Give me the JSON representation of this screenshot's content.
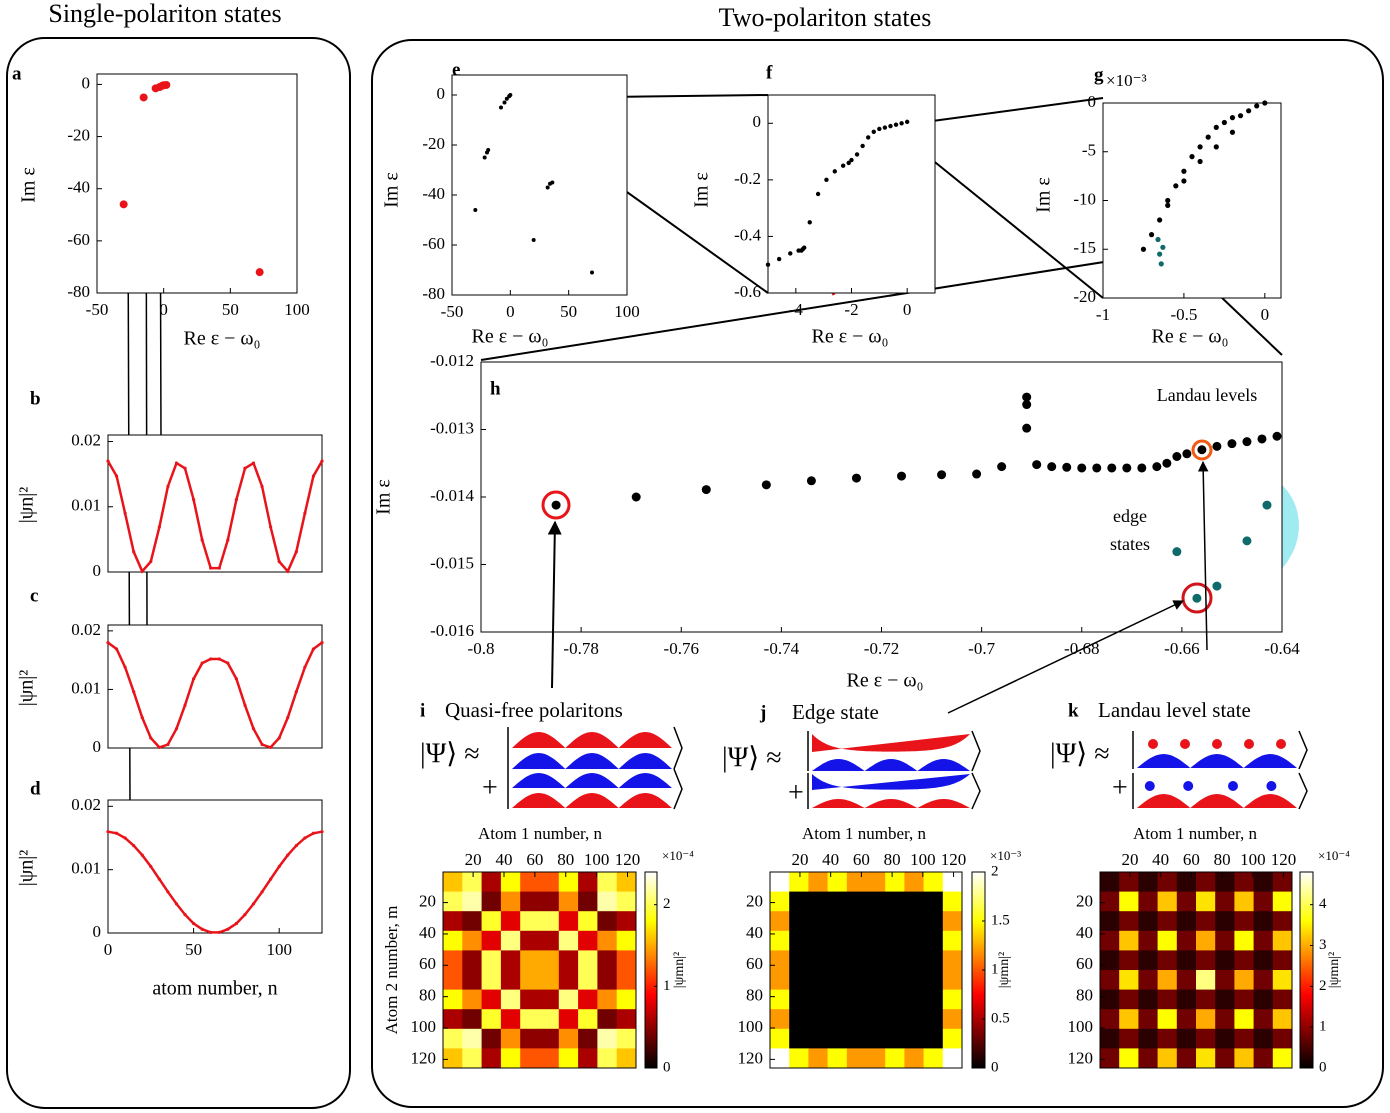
{
  "headings": {
    "left": "Single-polariton states",
    "right": "Two-polariton states"
  },
  "chart_data": [
    {
      "type": "scatter",
      "label": "a",
      "xlabel": "Re ε − ω₀",
      "ylabel": "Im ε",
      "xlim": [
        -50,
        100
      ],
      "ylim": [
        -80,
        4
      ],
      "xticks": [
        -50,
        0,
        50,
        100
      ],
      "yticks": [
        0,
        -20,
        -40,
        -60,
        -80
      ],
      "series": [
        {
          "color": "#e8141a",
          "x": [
            -30,
            -15,
            -6,
            -3,
            -1,
            0,
            2,
            72
          ],
          "values": [
            -46,
            -5,
            -1.5,
            -1,
            -0.5,
            -0.3,
            -0.2,
            -72
          ]
        }
      ]
    },
    {
      "type": "line",
      "label": "b",
      "ylabel": "|ψn|²",
      "color": "#e8141a",
      "xlim": [
        0,
        125
      ],
      "ylim": [
        0,
        0.021
      ],
      "yticks": [
        0,
        0.01,
        0.02
      ],
      "x": [
        0,
        5,
        10,
        15,
        20,
        25,
        30,
        35,
        40,
        45,
        50,
        55,
        60,
        65,
        70,
        75,
        80,
        85,
        90,
        95,
        100,
        105,
        110,
        115,
        120,
        125
      ],
      "values": [
        0.017,
        0.0147,
        0.009,
        0.0031,
        0.0001,
        0.0016,
        0.0069,
        0.0131,
        0.0167,
        0.0159,
        0.0111,
        0.0049,
        0.0006,
        0.0006,
        0.0049,
        0.0111,
        0.0159,
        0.0167,
        0.0131,
        0.0069,
        0.0016,
        0.0001,
        0.0031,
        0.009,
        0.0147,
        0.017
      ]
    },
    {
      "type": "line",
      "label": "c",
      "ylabel": "|ψn|²",
      "color": "#e8141a",
      "xlim": [
        0,
        125
      ],
      "ylim": [
        0,
        0.021
      ],
      "yticks": [
        0,
        0.01,
        0.02
      ],
      "x": [
        0,
        5,
        10,
        15,
        20,
        25,
        30,
        35,
        40,
        45,
        50,
        55,
        60,
        65,
        70,
        75,
        80,
        85,
        90,
        95,
        100,
        105,
        110,
        115,
        120,
        125
      ],
      "values": [
        0.018,
        0.0169,
        0.0138,
        0.0096,
        0.0052,
        0.0017,
        0.0001,
        0.0006,
        0.0033,
        0.0073,
        0.0118,
        0.0145,
        0.0152,
        0.0152,
        0.0145,
        0.0118,
        0.0073,
        0.0033,
        0.0006,
        0.0001,
        0.0017,
        0.0052,
        0.0096,
        0.0138,
        0.0169,
        0.018
      ]
    },
    {
      "type": "line",
      "label": "d",
      "ylabel": "|ψn|²",
      "xlabel": "atom number, n",
      "color": "#e8141a",
      "xlim": [
        0,
        125
      ],
      "ylim": [
        0,
        0.021
      ],
      "yticks": [
        0,
        0.01,
        0.02
      ],
      "xticks": [
        0,
        50,
        100
      ],
      "x": [
        0,
        5,
        10,
        15,
        20,
        25,
        30,
        35,
        40,
        45,
        50,
        55,
        60,
        65,
        70,
        75,
        80,
        85,
        90,
        95,
        100,
        105,
        110,
        115,
        120,
        125
      ],
      "values": [
        0.016,
        0.01575,
        0.015,
        0.0138,
        0.0123,
        0.0105,
        0.0085,
        0.0065,
        0.0046,
        0.0029,
        0.0015,
        0.0006,
        0.0001,
        0.0001,
        0.0006,
        0.0015,
        0.0029,
        0.0046,
        0.0065,
        0.0085,
        0.0105,
        0.0123,
        0.0138,
        0.015,
        0.01575,
        0.016
      ]
    },
    {
      "type": "scatter",
      "label": "e",
      "xlabel": "Re ε − ω₀",
      "ylabel": "Im ε",
      "xlim": [
        -50,
        100
      ],
      "ylim": [
        -80,
        8
      ],
      "xticks": [
        -50,
        0,
        50,
        100
      ],
      "yticks": [
        0,
        -20,
        -40,
        -60,
        -80
      ],
      "series": [
        {
          "color": "#000000",
          "x": [
            -30,
            -22,
            -20,
            -19,
            -8,
            -5,
            -3,
            -1,
            0,
            20,
            32,
            34,
            36,
            70
          ],
          "values": [
            -46,
            -25,
            -23,
            -22,
            -5,
            -3,
            -1.5,
            -0.5,
            0,
            -58,
            -37,
            -35.5,
            -35,
            -71
          ]
        }
      ]
    },
    {
      "type": "scatter",
      "label": "f",
      "xlabel": "Re ε − ω₀",
      "ylabel": "Im ε",
      "xlim": [
        -5,
        1
      ],
      "ylim": [
        -0.6,
        0.1
      ],
      "xticks": [
        -4,
        -2,
        0
      ],
      "yticks": [
        0,
        -0.2,
        -0.4,
        -0.6
      ],
      "series": [
        {
          "color": "#000000",
          "x": [
            0,
            -0.2,
            -0.4,
            -0.6,
            -0.8,
            -1,
            -1.2,
            -1.4,
            -1.6,
            -1.8,
            -2,
            -2.1,
            -2.3,
            -2.6,
            -2.9,
            -3.2,
            -3.5,
            -3.7,
            -3.75,
            -3.8,
            -3.9,
            -4.2,
            -4.6,
            -5
          ],
          "values": [
            0.005,
            0,
            -0.005,
            -0.01,
            -0.015,
            -0.02,
            -0.03,
            -0.05,
            -0.08,
            -0.11,
            -0.13,
            -0.14,
            -0.15,
            -0.17,
            -0.2,
            -0.25,
            -0.35,
            -0.44,
            -0.445,
            -0.45,
            -0.45,
            -0.46,
            -0.48,
            -0.5
          ]
        }
      ]
    },
    {
      "type": "scatter",
      "label": "g",
      "y_multiplier": "×10⁻³",
      "xlabel": "Re ε − ω₀",
      "ylabel": "Im ε",
      "xlim": [
        -1,
        0.1
      ],
      "ylim": [
        -20,
        0
      ],
      "xticks": [
        -1,
        -0.5,
        0
      ],
      "yticks": [
        0,
        -5,
        -10,
        -15,
        -20
      ],
      "series": [
        {
          "color": "#000000",
          "x": [
            0,
            -0.05,
            -0.1,
            -0.15,
            -0.2,
            -0.25,
            -0.3,
            -0.35,
            -0.4,
            -0.45,
            -0.5,
            -0.55,
            -0.6,
            -0.65,
            -0.7,
            -0.75,
            -0.2,
            -0.3,
            -0.4,
            -0.5,
            -0.6
          ],
          "values": [
            0,
            -0.3,
            -0.8,
            -1.3,
            -1.5,
            -2,
            -2.5,
            -3.5,
            -4.5,
            -5.5,
            -7,
            -8.5,
            -10,
            -12,
            -13.5,
            -15,
            -3,
            -4.5,
            -6,
            -8,
            -10.5
          ]
        },
        {
          "color": "#0f6b6b",
          "x": [
            -0.66,
            -0.65,
            -0.64,
            -0.63
          ],
          "values": [
            -14,
            -15.5,
            -16.5,
            -14.8
          ]
        }
      ]
    },
    {
      "type": "scatter",
      "label": "h",
      "xlabel": "Re ε − ω₀",
      "ylabel": "Im ε",
      "xlim": [
        -0.8,
        -0.64
      ],
      "ylim": [
        -0.016,
        -0.012
      ],
      "xticks": [
        -0.8,
        -0.78,
        -0.76,
        -0.74,
        -0.72,
        -0.7,
        -0.68,
        -0.66,
        -0.64
      ],
      "yticks": [
        -0.012,
        -0.013,
        -0.014,
        -0.015,
        -0.016
      ],
      "annotations": [
        "Landau levels",
        "edge states"
      ],
      "series": [
        {
          "color": "#000000",
          "x": [
            -0.785,
            -0.769,
            -0.755,
            -0.743,
            -0.734,
            -0.725,
            -0.716,
            -0.708,
            -0.701,
            -0.696,
            -0.691,
            -0.691,
            -0.691,
            -0.689,
            -0.686,
            -0.683,
            -0.68,
            -0.677,
            -0.674,
            -0.671,
            -0.668,
            -0.665,
            -0.663,
            -0.661,
            -0.659,
            -0.656,
            -0.653,
            -0.65,
            -0.647,
            -0.644,
            -0.641
          ],
          "values": [
            -0.01412,
            -0.014,
            -0.01389,
            -0.01382,
            -0.01376,
            -0.01372,
            -0.01369,
            -0.01367,
            -0.01366,
            -0.01355,
            -0.01252,
            -0.01263,
            -0.01298,
            -0.01352,
            -0.01355,
            -0.01356,
            -0.01357,
            -0.01357,
            -0.01357,
            -0.01357,
            -0.01357,
            -0.01355,
            -0.0135,
            -0.0134,
            -0.01336,
            -0.0133,
            -0.01325,
            -0.01321,
            -0.01318,
            -0.01314,
            -0.0131
          ]
        },
        {
          "color": "#0f6b6b",
          "x": [
            -0.661,
            -0.657,
            -0.653,
            -0.647,
            -0.643
          ],
          "values": [
            -0.01481,
            -0.0155,
            -0.01532,
            -0.01465,
            -0.01412
          ]
        }
      ]
    },
    {
      "type": "heatmap",
      "colormap": "hot",
      "xaxis_top": true,
      "yreverse": true,
      "xlabel": "Atom 1 number, n",
      "ylabel": "Atom 2 number, m",
      "colorbar_label": "|ψmn|²",
      "z_multiplier": "×10⁻⁴",
      "xlim": [
        0.5,
        125.5
      ],
      "ylim": [
        0.5,
        125.5
      ],
      "xticks": [
        20,
        40,
        60,
        80,
        100,
        120
      ],
      "yticks": [
        20,
        40,
        60,
        80,
        100,
        120
      ],
      "zlim": [
        0,
        2.4
      ],
      "zticks": [
        0,
        1,
        2
      ],
      "z": [
        [
          1.6,
          2.0,
          0.6,
          1.8,
          1.2,
          1.2,
          1.8,
          0.6,
          2.0,
          1.6
        ],
        [
          2.0,
          2.2,
          0.4,
          1.4,
          0.5,
          0.5,
          1.4,
          0.4,
          2.2,
          2.0
        ],
        [
          0.6,
          0.4,
          1.9,
          0.8,
          2.0,
          2.0,
          0.8,
          1.9,
          0.4,
          0.6
        ],
        [
          1.8,
          1.4,
          0.8,
          2.1,
          0.6,
          0.6,
          2.1,
          0.8,
          1.4,
          1.8
        ],
        [
          1.2,
          0.5,
          2.0,
          0.6,
          1.5,
          1.5,
          0.6,
          2.0,
          0.5,
          1.2
        ],
        [
          1.2,
          0.5,
          2.0,
          0.6,
          1.5,
          1.5,
          0.6,
          2.0,
          0.5,
          1.2
        ],
        [
          1.8,
          1.4,
          0.8,
          2.1,
          0.6,
          0.6,
          2.1,
          0.8,
          1.4,
          1.8
        ],
        [
          0.6,
          0.4,
          1.9,
          0.8,
          2.0,
          2.0,
          0.8,
          1.9,
          0.4,
          0.6
        ],
        [
          2.0,
          2.2,
          0.4,
          1.4,
          0.5,
          0.5,
          1.4,
          0.4,
          2.2,
          2.0
        ],
        [
          1.6,
          2.0,
          0.6,
          1.8,
          1.2,
          1.2,
          1.8,
          0.6,
          2.0,
          1.6
        ]
      ]
    },
    {
      "type": "heatmap",
      "colormap": "hot",
      "xaxis_top": true,
      "yreverse": true,
      "xlabel": "Atom 1 number, n",
      "colorbar_label": "|ψmn|²",
      "z_multiplier": "×10⁻³",
      "xlim": [
        0.5,
        125.5
      ],
      "ylim": [
        0.5,
        125.5
      ],
      "xticks": [
        20,
        40,
        60,
        80,
        100,
        120
      ],
      "yticks": [
        20,
        40,
        60,
        80,
        100,
        120
      ],
      "zlim": [
        0,
        2
      ],
      "zticks": [
        0,
        0.5,
        1,
        1.5,
        2
      ],
      "z": [
        [
          2,
          1.5,
          1.2,
          1.5,
          1.2,
          1.2,
          1.5,
          1.2,
          1.5,
          2
        ],
        [
          1.5,
          0,
          0,
          0,
          0,
          0,
          0,
          0,
          0,
          1.5
        ],
        [
          1.2,
          0,
          0,
          0,
          0,
          0,
          0,
          0,
          0,
          1.2
        ],
        [
          1.5,
          0,
          0,
          0,
          0,
          0,
          0,
          0,
          0,
          1.5
        ],
        [
          1.2,
          0,
          0,
          0,
          0,
          0,
          0,
          0,
          0,
          1.2
        ],
        [
          1.2,
          0,
          0,
          0,
          0,
          0,
          0,
          0,
          0,
          1.2
        ],
        [
          1.5,
          0,
          0,
          0,
          0,
          0,
          0,
          0,
          0,
          1.5
        ],
        [
          1.2,
          0,
          0,
          0,
          0,
          0,
          0,
          0,
          0,
          1.2
        ],
        [
          1.5,
          0,
          0,
          0,
          0,
          0,
          0,
          0,
          0,
          1.5
        ],
        [
          2,
          1.5,
          1.2,
          1.5,
          1.2,
          1.2,
          1.5,
          1.2,
          1.5,
          2
        ]
      ]
    },
    {
      "type": "heatmap",
      "colormap": "hot",
      "xaxis_top": true,
      "yreverse": true,
      "xlabel": "Atom 1 number, n",
      "colorbar_label": "|ψmn|²",
      "z_multiplier": "×10⁻⁴",
      "xlim": [
        0.5,
        125.5
      ],
      "ylim": [
        0.5,
        125.5
      ],
      "xticks": [
        20,
        40,
        60,
        80,
        100,
        120
      ],
      "yticks": [
        20,
        40,
        60,
        80,
        100,
        120
      ],
      "zlim": [
        0,
        4.8
      ],
      "zticks": [
        0,
        1,
        2,
        3,
        4
      ],
      "z": [
        [
          0.3,
          0.8,
          0.3,
          0.8,
          0.3,
          0.8,
          0.3,
          0.8,
          0.3,
          0.8
        ],
        [
          0.8,
          3.6,
          0.8,
          3.2,
          0.8,
          3.4,
          0.8,
          3.2,
          0.8,
          3.6
        ],
        [
          0.3,
          0.8,
          0.3,
          0.8,
          0.3,
          0.8,
          0.3,
          0.8,
          0.3,
          0.8
        ],
        [
          0.8,
          3.2,
          0.8,
          3.6,
          0.8,
          3.0,
          0.8,
          3.6,
          0.8,
          3.2
        ],
        [
          0.3,
          0.8,
          0.3,
          0.8,
          0.3,
          0.8,
          0.3,
          0.8,
          0.3,
          0.8
        ],
        [
          0.8,
          3.4,
          0.8,
          3.0,
          0.8,
          4.2,
          0.8,
          3.0,
          0.8,
          3.4
        ],
        [
          0.3,
          0.8,
          0.3,
          0.8,
          0.3,
          0.8,
          0.3,
          0.8,
          0.3,
          0.8
        ],
        [
          0.8,
          3.2,
          0.8,
          3.6,
          0.8,
          3.0,
          0.8,
          3.6,
          0.8,
          3.2
        ],
        [
          0.3,
          0.8,
          0.3,
          0.8,
          0.3,
          0.8,
          0.3,
          0.8,
          0.3,
          0.8
        ],
        [
          0.8,
          3.6,
          0.8,
          3.2,
          0.8,
          3.4,
          0.8,
          3.2,
          0.8,
          3.6
        ]
      ]
    }
  ],
  "states": [
    {
      "label": "i",
      "title": "Quasi-free polaritons",
      "ket": "|Ψ⟩ ≈",
      "plus": "+"
    },
    {
      "label": "j",
      "title": "Edge state",
      "ket": "|Ψ⟩ ≈",
      "plus": "+"
    },
    {
      "label": "k",
      "title": "Landau level state",
      "ket": "|Ψ⟩ ≈",
      "plus": "+"
    }
  ]
}
